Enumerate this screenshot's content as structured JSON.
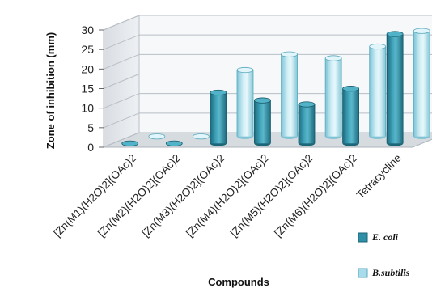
{
  "chart_data": {
    "type": "bar",
    "style": "3d-cylinder",
    "categories": [
      "[Zn(M1)(H2O)2](OAc)2",
      "[Zn(M2)(H2O)2](OAc)2",
      "[Zn(M3)(H2O)2](OAc)2",
      "[Zn(M4)(H2O)2](OAc)2",
      "[Zn(M5)(H2O)2](OAc)2",
      "[Zn(M6)(H2O)2](OAc)2",
      "Tetracycline"
    ],
    "series": [
      {
        "name": "E. coli",
        "values": [
          0,
          0,
          13,
          11,
          10,
          14,
          28
        ],
        "color": "#2e8fa6"
      },
      {
        "name": "B.subtilis",
        "values": [
          0,
          0,
          17,
          21,
          20,
          23,
          27
        ],
        "color": "#a9dcea"
      }
    ],
    "xlabel": "Compounds",
    "ylabel": "Zone of inhibition (mm)",
    "ylim": [
      0,
      30
    ],
    "yticks": [
      0,
      5,
      10,
      15,
      20,
      25,
      30
    ],
    "grid": true,
    "legend_position": "bottom-right"
  }
}
